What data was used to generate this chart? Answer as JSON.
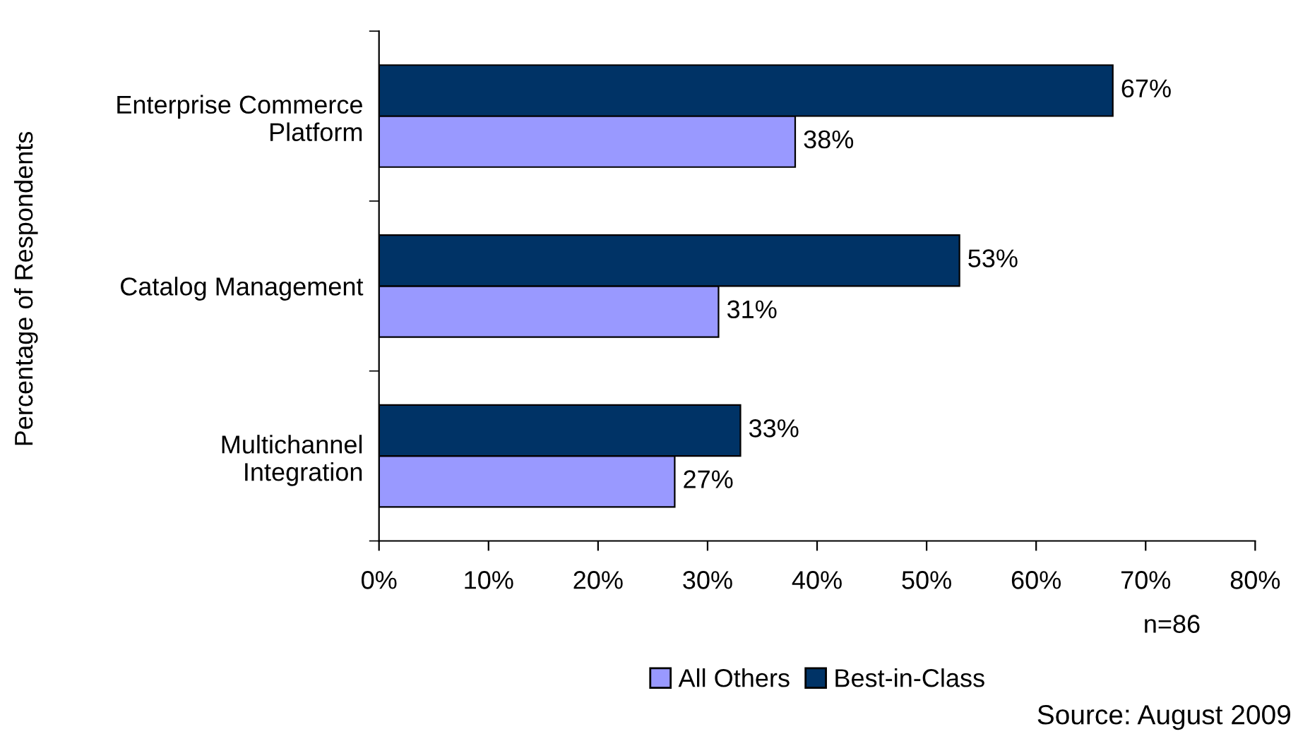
{
  "chart_data": {
    "type": "bar",
    "orientation": "horizontal",
    "ylabel": "Percentage of Respondents",
    "categories": [
      "Enterprise Commerce\nPlatform",
      "Catalog Management",
      "Multichannel\nIntegration"
    ],
    "series": [
      {
        "name": "All Others",
        "color": "#9999ff",
        "values": [
          38,
          31,
          27
        ],
        "value_labels": [
          "38%",
          "31%",
          "27%"
        ]
      },
      {
        "name": "Best-in-Class",
        "color": "#003366",
        "values": [
          67,
          53,
          33
        ],
        "value_labels": [
          "67%",
          "53%",
          "33%"
        ]
      }
    ],
    "xlim": [
      0,
      80
    ],
    "xticks": [
      {
        "value": 0,
        "label": "0%"
      },
      {
        "value": 10,
        "label": "10%"
      },
      {
        "value": 20,
        "label": "20%"
      },
      {
        "value": 30,
        "label": "30%"
      },
      {
        "value": 40,
        "label": "40%"
      },
      {
        "value": 50,
        "label": "50%"
      },
      {
        "value": 60,
        "label": "60%"
      },
      {
        "value": 70,
        "label": "70%"
      },
      {
        "value": 80,
        "label": "80%"
      }
    ],
    "grid": false,
    "legend": "bottom",
    "annotations": [
      "n=86",
      "Source: August 2009"
    ]
  }
}
